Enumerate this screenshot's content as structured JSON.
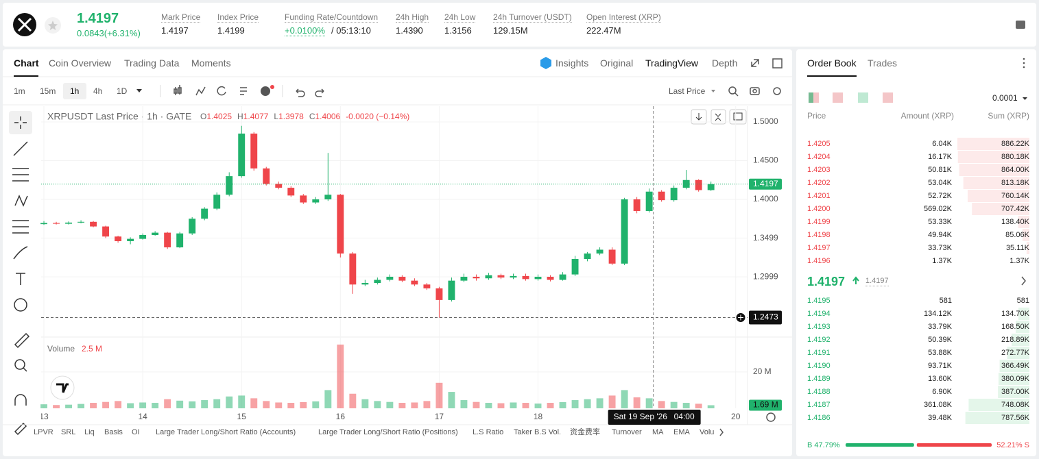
{
  "header": {
    "price": "1.4197",
    "change": "0.0843(+6.31%)",
    "stats": [
      {
        "label": "Mark Price",
        "value": "1.4197"
      },
      {
        "label": "Index Price",
        "value": "1.4199"
      },
      {
        "label": "Funding Rate/Countdown",
        "value": "+0.0100%",
        "extra": "/ 05:13:10"
      },
      {
        "label": "24h High",
        "value": "1.4390"
      },
      {
        "label": "24h Low",
        "value": "1.3156"
      },
      {
        "label": "24h Turnover (USDT)",
        "value": "129.15M"
      },
      {
        "label": "Open Interest (XRP)",
        "value": "222.47M"
      }
    ]
  },
  "tabs": {
    "left": [
      "Chart",
      "Coin Overview",
      "Trading Data",
      "Moments"
    ],
    "right": [
      "Insights",
      "Original",
      "TradingView",
      "Depth"
    ]
  },
  "toolbar": {
    "intervals": [
      "1m",
      "15m",
      "1h",
      "4h",
      "1D"
    ],
    "price_type": "Last Price"
  },
  "chart_data": {
    "type": "candlestick",
    "title": "XRPUSDT Last Price · 1h · GATE",
    "ohlc_legend": [
      {
        "key": "O",
        "value": "1.4025"
      },
      {
        "key": "H",
        "value": "1.4077"
      },
      {
        "key": "L",
        "value": "1.3978"
      },
      {
        "key": "C",
        "value": "1.4006"
      }
    ],
    "change_legend": "-0.0020 (−0.14%)",
    "colors": {
      "up": "#20b26c",
      "down": "#ef454a"
    },
    "x": [
      13,
      13.125,
      13.25,
      13.375,
      13.5,
      13.625,
      13.75,
      13.875,
      14,
      14.125,
      14.25,
      14.375,
      14.5,
      14.625,
      14.75,
      14.875,
      15,
      15.125,
      15.25,
      15.375,
      15.5,
      15.625,
      15.75,
      15.875,
      16,
      16.125,
      16.25,
      16.375,
      16.5,
      16.625,
      16.75,
      16.875,
      17,
      17.125,
      17.25,
      17.375,
      17.5,
      17.625,
      17.75,
      17.875,
      18,
      18.125,
      18.25,
      18.375,
      18.5,
      18.625,
      18.75,
      18.875,
      19,
      19.125,
      19.25,
      19.375,
      19.5,
      19.625,
      19.75
    ],
    "open": [
      1.368,
      1.3695,
      1.3685,
      1.37,
      1.371,
      1.365,
      1.352,
      1.346,
      1.349,
      1.354,
      1.357,
      1.338,
      1.356,
      1.375,
      1.388,
      1.406,
      1.43,
      1.485,
      1.44,
      1.42,
      1.415,
      1.405,
      1.396,
      1.4,
      1.406,
      1.33,
      1.29,
      1.292,
      1.296,
      1.3,
      1.295,
      1.29,
      1.285,
      1.27,
      1.295,
      1.3,
      1.298,
      1.302,
      1.299,
      1.301,
      1.297,
      1.3,
      1.296,
      1.303,
      1.323,
      1.33,
      1.335,
      1.317,
      1.4,
      1.385,
      1.41,
      1.399,
      1.415,
      1.425,
      1.412
    ],
    "high": [
      1.372,
      1.371,
      1.3715,
      1.373,
      1.372,
      1.366,
      1.353,
      1.351,
      1.356,
      1.359,
      1.358,
      1.358,
      1.377,
      1.39,
      1.409,
      1.435,
      1.495,
      1.487,
      1.442,
      1.423,
      1.417,
      1.407,
      1.403,
      1.46,
      1.407,
      1.332,
      1.296,
      1.299,
      1.303,
      1.302,
      1.298,
      1.292,
      1.287,
      1.299,
      1.304,
      1.303,
      1.305,
      1.304,
      1.304,
      1.304,
      1.303,
      1.302,
      1.306,
      1.327,
      1.332,
      1.338,
      1.338,
      1.402,
      1.403,
      1.414,
      1.412,
      1.418,
      1.438,
      1.426,
      1.423
    ],
    "low": [
      1.367,
      1.3675,
      1.3675,
      1.369,
      1.364,
      1.35,
      1.344,
      1.342,
      1.348,
      1.353,
      1.336,
      1.337,
      1.354,
      1.373,
      1.386,
      1.404,
      1.428,
      1.437,
      1.418,
      1.413,
      1.403,
      1.394,
      1.394,
      1.398,
      1.325,
      1.278,
      1.288,
      1.29,
      1.294,
      1.293,
      1.288,
      1.283,
      1.2473,
      1.268,
      1.293,
      1.295,
      1.296,
      1.297,
      1.297,
      1.295,
      1.295,
      1.294,
      1.295,
      1.301,
      1.32,
      1.328,
      1.315,
      1.315,
      1.382,
      1.383,
      1.397,
      1.397,
      1.413,
      1.41,
      1.411
    ],
    "close": [
      1.3695,
      1.3685,
      1.37,
      1.371,
      1.365,
      1.352,
      1.346,
      1.349,
      1.354,
      1.357,
      1.338,
      1.356,
      1.375,
      1.388,
      1.406,
      1.43,
      1.485,
      1.44,
      1.42,
      1.415,
      1.405,
      1.396,
      1.4,
      1.406,
      1.33,
      1.29,
      1.292,
      1.296,
      1.3,
      1.295,
      1.29,
      1.285,
      1.27,
      1.295,
      1.3,
      1.298,
      1.302,
      1.299,
      1.301,
      1.297,
      1.3,
      1.296,
      1.303,
      1.323,
      1.33,
      1.335,
      1.317,
      1.4,
      1.385,
      1.41,
      1.399,
      1.415,
      1.425,
      1.412,
      1.4197
    ],
    "volume": [
      2.2,
      1.8,
      2,
      2.4,
      3,
      3.5,
      4,
      2.8,
      3.2,
      3,
      5,
      4.2,
      3.8,
      4.5,
      5,
      6.5,
      7,
      5.5,
      4,
      3.2,
      3,
      3.4,
      3.8,
      10,
      35,
      8,
      5,
      4,
      3.5,
      3,
      3.2,
      4,
      14,
      9,
      4.5,
      3.5,
      3,
      2.8,
      3.2,
      3,
      2.6,
      3,
      3.4,
      4.5,
      5,
      5.5,
      7,
      10,
      6,
      5.5,
      4,
      3.5,
      3,
      2.5,
      1.69
    ],
    "xlim": [
      12.972,
      20.12
    ],
    "xticks": [
      13,
      14,
      15,
      16,
      17,
      18,
      20
    ],
    "ylim": [
      1.2221,
      1.5204
    ],
    "yticks": [
      {
        "value": 1.5,
        "label": "1.5000"
      },
      {
        "value": 1.45,
        "label": "1.4500"
      },
      {
        "value": 1.4,
        "label": "1.4000"
      },
      {
        "value": 1.3499,
        "label": "1.3499"
      },
      {
        "value": 1.2999,
        "label": "1.2999"
      }
    ],
    "volume_title": "Volume",
    "volume_ma": "2.5 M",
    "volume_ylim": [
      0,
      38
    ],
    "volume_yticks": [
      {
        "value": 20,
        "label": "20 M"
      }
    ],
    "volume_last": {
      "value": 1.69,
      "label": "1.69 M"
    },
    "last_price": {
      "value": 1.4197,
      "label": "1.4197"
    },
    "crosshair": {
      "x": 19.1667,
      "price": 1.2473,
      "price_label": "1.2473",
      "date": "Sat 19 Sep '26",
      "time": "04:00"
    }
  },
  "indicators": [
    "LPVR",
    "SRL",
    "Liq",
    "Basis",
    "OI",
    "Large Trader Long/Short Ratio (Accounts)",
    "Large Trader Long/Short Ratio (Positions)",
    "L.S Ratio",
    "Taker B.S Vol.",
    "资金费率",
    "Turnover",
    "MA",
    "EMA",
    "Volu"
  ],
  "order_book": {
    "tabs": [
      "Order Book",
      "Trades"
    ],
    "precision": "0.0001",
    "columns": [
      "Price",
      "Amount (XRP)",
      "Sum (XRP)"
    ],
    "asks": {
      "price": [
        "1.4205",
        "1.4204",
        "1.4203",
        "1.4202",
        "1.4201",
        "1.4200",
        "1.4199",
        "1.4198",
        "1.4197",
        "1.4196"
      ],
      "amount": [
        "6.04K",
        "16.17K",
        "50.81K",
        "53.04K",
        "52.72K",
        "569.02K",
        "53.33K",
        "49.94K",
        "33.73K",
        "1.37K"
      ],
      "sum": [
        886.22,
        880.18,
        864,
        813.18,
        760.14,
        707.42,
        138.4,
        85.06,
        35.11,
        1.37
      ],
      "sum_labels": [
        "886.22K",
        "880.18K",
        "864.00K",
        "813.18K",
        "760.14K",
        "707.42K",
        "138.40K",
        "85.06K",
        "35.11K",
        "1.37K"
      ]
    },
    "mid_price": "1.4197",
    "mark_price": "1.4197",
    "bids": {
      "price": [
        "1.4195",
        "1.4194",
        "1.4193",
        "1.4192",
        "1.4191",
        "1.4190",
        "1.4189",
        "1.4188",
        "1.4187",
        "1.4186"
      ],
      "amount": [
        "581",
        "134.12K",
        "33.79K",
        "50.39K",
        "53.88K",
        "93.71K",
        "13.60K",
        "6.90K",
        "361.08K",
        "39.48K"
      ],
      "sum": [
        0.581,
        134.7,
        168.5,
        218.89,
        272.77,
        366.49,
        380.09,
        387,
        748.08,
        787.56
      ],
      "sum_labels": [
        "581",
        "134.70K",
        "168.50K",
        "218.89K",
        "272.77K",
        "366.49K",
        "380.09K",
        "387.00K",
        "748.08K",
        "787.56K"
      ]
    },
    "buy_ratio": {
      "value": 47.79,
      "label": "B 47.79%"
    },
    "sell_ratio": {
      "value": 52.21,
      "label": "52.21% S"
    }
  }
}
